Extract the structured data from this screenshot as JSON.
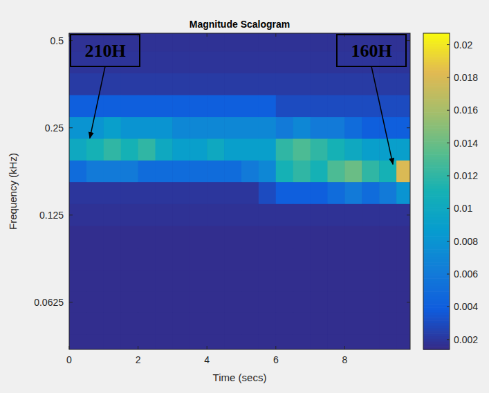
{
  "chart_data": {
    "type": "heatmap",
    "title": "Magnitude Scalogram",
    "x_label": "Time (secs)",
    "y_label": "Frequency (kHz)",
    "log": "y",
    "xlim": [
      0,
      9.9
    ],
    "ylim": [
      0.043,
      0.53
    ],
    "xticks": [
      0,
      2,
      4,
      6,
      8
    ],
    "yticks": [
      0.0625,
      0.125,
      0.25,
      0.5
    ],
    "x": [
      0.25,
      0.75,
      1.25,
      1.75,
      2.25,
      2.75,
      3.25,
      3.75,
      4.25,
      4.75,
      5.25,
      5.75,
      6.25,
      6.75,
      7.25,
      7.75,
      8.25,
      8.75,
      9.25,
      9.75
    ],
    "y": [
      0.5,
      0.42,
      0.354,
      0.297,
      0.25,
      0.21,
      0.177,
      0.149,
      0.125,
      0.105,
      0.088,
      0.074,
      0.0625,
      0.053,
      0.044
    ],
    "cells": [
      [
        0.0018,
        0.0018,
        0.0018,
        0.0018,
        0.0018,
        0.0018,
        0.0018,
        0.0018,
        0.0018,
        0.0018,
        0.0018,
        0.0018,
        0.0018,
        0.0018,
        0.0018,
        0.0018,
        0.0018,
        0.0018,
        0.0018,
        0.0018
      ],
      [
        0.0019,
        0.0019,
        0.0019,
        0.0019,
        0.0019,
        0.0019,
        0.0019,
        0.0019,
        0.0019,
        0.0019,
        0.0019,
        0.0019,
        0.0019,
        0.0019,
        0.0019,
        0.0019,
        0.0019,
        0.0019,
        0.0019,
        0.0019
      ],
      [
        0.0022,
        0.0022,
        0.0022,
        0.0022,
        0.0022,
        0.0022,
        0.0022,
        0.0022,
        0.0022,
        0.0022,
        0.0022,
        0.0022,
        0.0022,
        0.0022,
        0.0022,
        0.0022,
        0.0022,
        0.0022,
        0.0022,
        0.0022
      ],
      [
        0.004,
        0.004,
        0.004,
        0.004,
        0.004,
        0.004,
        0.004,
        0.004,
        0.004,
        0.004,
        0.004,
        0.004,
        0.003,
        0.003,
        0.003,
        0.003,
        0.003,
        0.003,
        0.003,
        0.003
      ],
      [
        0.008,
        0.008,
        0.009,
        0.008,
        0.008,
        0.008,
        0.007,
        0.007,
        0.007,
        0.007,
        0.007,
        0.007,
        0.006,
        0.007,
        0.006,
        0.006,
        0.005,
        0.004,
        0.004,
        0.004
      ],
      [
        0.01,
        0.011,
        0.012,
        0.011,
        0.012,
        0.01,
        0.009,
        0.009,
        0.01,
        0.009,
        0.009,
        0.009,
        0.012,
        0.013,
        0.012,
        0.011,
        0.01,
        0.009,
        0.009,
        0.009
      ],
      [
        0.005,
        0.006,
        0.006,
        0.006,
        0.005,
        0.005,
        0.005,
        0.005,
        0.005,
        0.005,
        0.006,
        0.007,
        0.011,
        0.012,
        0.011,
        0.013,
        0.014,
        0.012,
        0.011,
        0.018
      ],
      [
        0.002,
        0.002,
        0.002,
        0.002,
        0.002,
        0.002,
        0.002,
        0.002,
        0.002,
        0.002,
        0.002,
        0.003,
        0.004,
        0.004,
        0.004,
        0.005,
        0.006,
        0.005,
        0.006,
        0.008
      ],
      [
        0.0018,
        0.0018,
        0.0018,
        0.0018,
        0.0018,
        0.0018,
        0.0018,
        0.0018,
        0.0018,
        0.0018,
        0.0018,
        0.0018,
        0.0018,
        0.0018,
        0.0018,
        0.0018,
        0.0018,
        0.0018,
        0.0018,
        0.0018
      ],
      [
        0.0016,
        0.0016,
        0.0016,
        0.0016,
        0.0016,
        0.0016,
        0.0016,
        0.0016,
        0.0016,
        0.0016,
        0.0016,
        0.0016,
        0.0016,
        0.0016,
        0.0016,
        0.0016,
        0.0016,
        0.0016,
        0.0016,
        0.0016
      ],
      [
        0.0016,
        0.0016,
        0.0016,
        0.0016,
        0.0016,
        0.0016,
        0.0016,
        0.0016,
        0.0016,
        0.0016,
        0.0016,
        0.0016,
        0.0016,
        0.0016,
        0.0016,
        0.0016,
        0.0016,
        0.0016,
        0.0016,
        0.0016
      ],
      [
        0.0016,
        0.0016,
        0.0016,
        0.0016,
        0.0016,
        0.0016,
        0.0016,
        0.0016,
        0.0016,
        0.0016,
        0.0016,
        0.0016,
        0.0016,
        0.0016,
        0.0016,
        0.0016,
        0.0016,
        0.0016,
        0.0016,
        0.0016
      ],
      [
        0.0016,
        0.0016,
        0.0016,
        0.0016,
        0.0016,
        0.0016,
        0.0016,
        0.0016,
        0.0016,
        0.0016,
        0.0016,
        0.0016,
        0.0016,
        0.0016,
        0.0016,
        0.0016,
        0.0016,
        0.0016,
        0.0016,
        0.0016
      ],
      [
        0.0016,
        0.0016,
        0.0016,
        0.0016,
        0.0016,
        0.0016,
        0.0016,
        0.0016,
        0.0016,
        0.0016,
        0.0016,
        0.0016,
        0.0016,
        0.0016,
        0.0016,
        0.0016,
        0.0016,
        0.0016,
        0.0016,
        0.0016
      ],
      [
        0.0016,
        0.0016,
        0.0016,
        0.0016,
        0.0016,
        0.0016,
        0.0016,
        0.0016,
        0.0016,
        0.0016,
        0.0016,
        0.0016,
        0.0016,
        0.0016,
        0.0016,
        0.0016,
        0.0016,
        0.0016,
        0.0016,
        0.0016
      ]
    ],
    "clim": [
      0.0014,
      0.0207
    ],
    "cticks": [
      0.002,
      0.004,
      0.006,
      0.008,
      0.01,
      0.012,
      0.014,
      0.016,
      0.018,
      0.02
    ],
    "annotations": [
      {
        "text": "210H",
        "x": 0.6,
        "y": 0.23
      },
      {
        "text": "160H",
        "x": 9.4,
        "y": 0.187
      }
    ]
  }
}
